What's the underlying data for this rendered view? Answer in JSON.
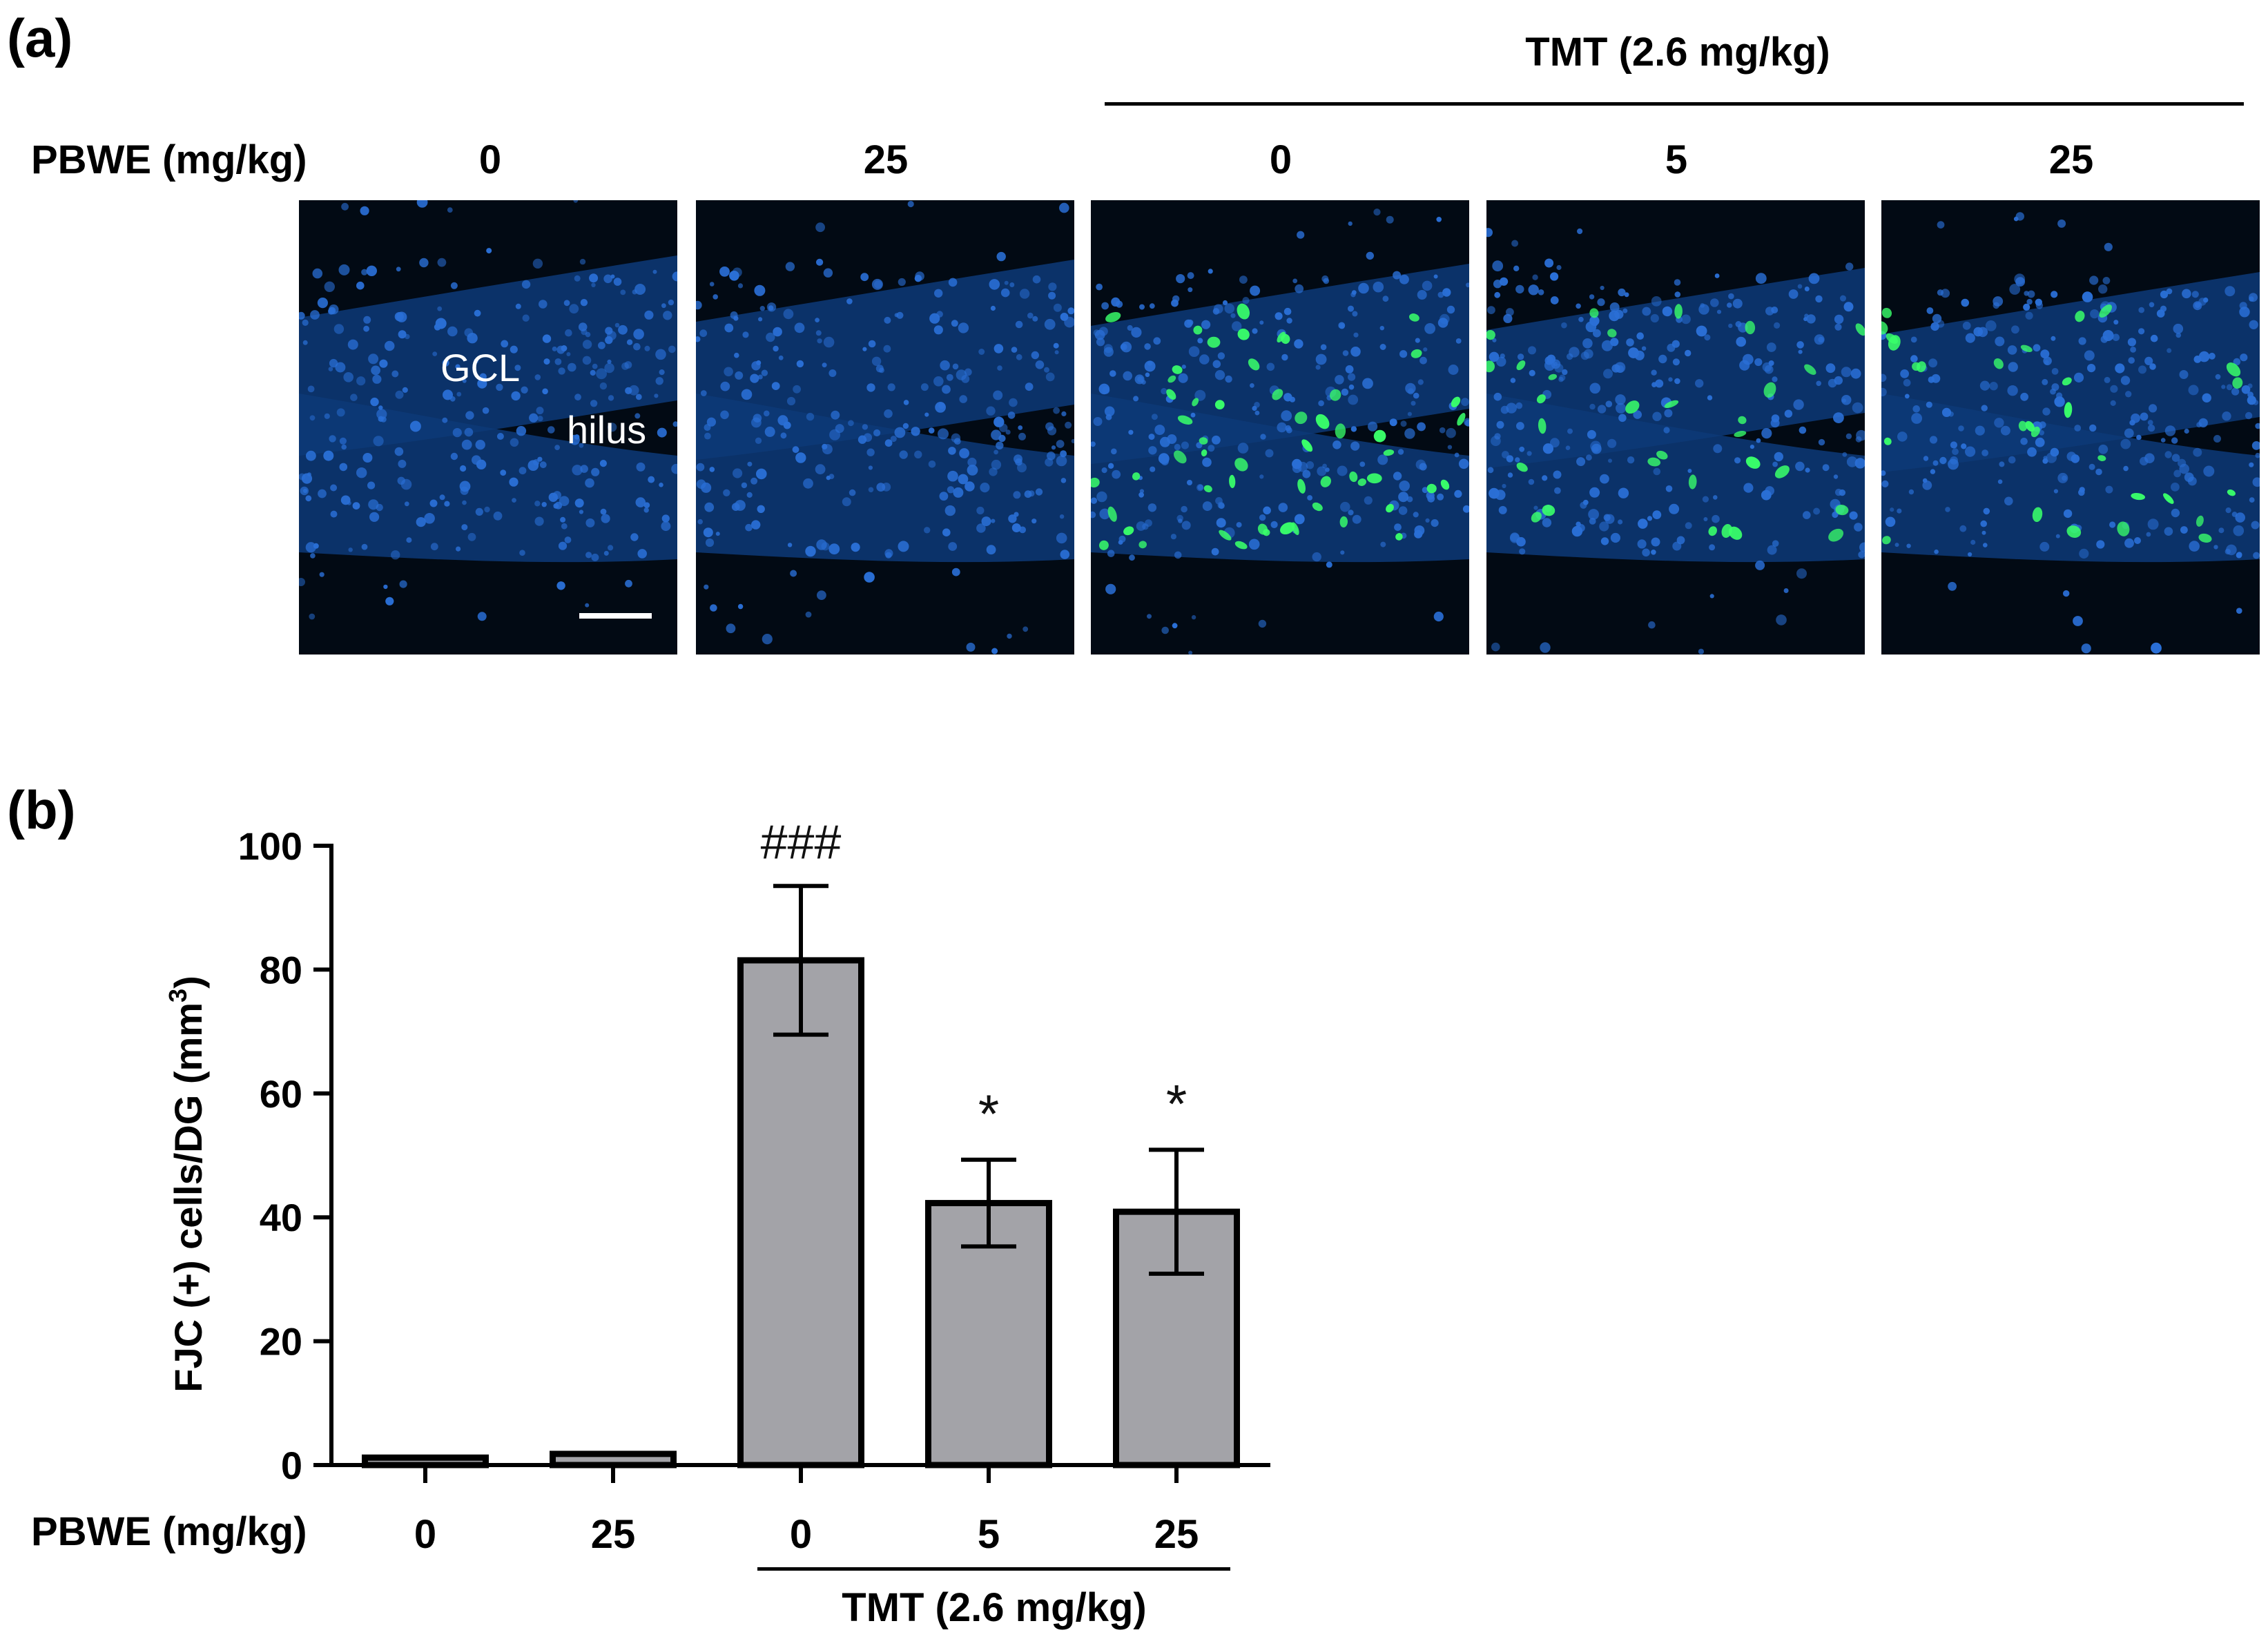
{
  "panel_a": {
    "label": "(a)",
    "group_label": "TMT (2.6 mg/kg)",
    "row_label": "PBWE (mg/kg)",
    "doses": [
      "0",
      "25",
      "0",
      "5",
      "25"
    ],
    "micrograph_labels": {
      "layer": "GCL",
      "region": "hilus"
    },
    "stain_colors": {
      "nuclei": "#2a6fd6",
      "fjc_positive": "#39ff6a",
      "background": "#020a14"
    },
    "fjc_positive_density": [
      0,
      0,
      1.0,
      0.55,
      0.5
    ]
  },
  "panel_b": {
    "label": "(b)",
    "row_label": "PBWE (mg/kg)",
    "group_label": "TMT (2.6 mg/kg)"
  },
  "chart_data": {
    "type": "bar",
    "categories": [
      "0",
      "25",
      "0",
      "5",
      "25"
    ],
    "values": [
      1.2,
      1.8,
      81.5,
      42.3,
      40.9
    ],
    "errors": [
      0.3,
      0.3,
      12.0,
      7.0,
      10.0
    ],
    "annotations": [
      "",
      "",
      "###",
      "*",
      "*"
    ],
    "ylabel": "FJC  (+) cells/DG (mm3)",
    "ylabel_main": "FJC  (+) cells/DG (mm",
    "ylabel_sup": "3",
    "ylabel_close": ")",
    "yticks": [
      "0",
      "20",
      "40",
      "60",
      "80",
      "100"
    ],
    "ylim": [
      0,
      100
    ],
    "bar_color": "#a3a3a8",
    "xlabel": "",
    "grid": false
  }
}
